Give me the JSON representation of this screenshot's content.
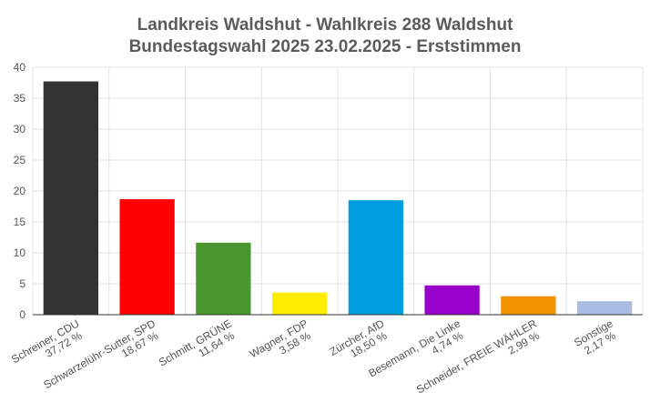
{
  "chart_data": {
    "type": "bar",
    "title_lines": [
      "Landkreis Waldshut - Wahlkreis 288 Waldshut",
      "Bundestagswahl 2025 23.02.2025  - Erststimmen"
    ],
    "categories": [
      [
        "Schreiner, CDU",
        "37,72 %"
      ],
      [
        "Schwarzelühr-Sutter, SPD",
        "18,67 %"
      ],
      [
        "Schmitt, GRÜNE",
        "11,64 %"
      ],
      [
        "Wagner, FDP",
        "3,58 %"
      ],
      [
        "Zürcher, AfD",
        "18,50 %"
      ],
      [
        "Besemann, Die Linke",
        "4,74 %"
      ],
      [
        "Schneider, FREIE WÄHLER",
        "2,99 %"
      ],
      [
        "Sonstige",
        "2,17 %"
      ]
    ],
    "values": [
      37.72,
      18.67,
      11.64,
      3.58,
      18.5,
      4.74,
      2.99,
      2.17
    ],
    "colors": [
      "#333333",
      "#ff0000",
      "#4a962e",
      "#ffed00",
      "#009ee0",
      "#9900cc",
      "#f39200",
      "#a9bde3"
    ],
    "ylim": [
      0,
      40
    ],
    "yticks": [
      0,
      5,
      10,
      15,
      20,
      25,
      30,
      35,
      40
    ],
    "grid": true,
    "legend": "none"
  }
}
